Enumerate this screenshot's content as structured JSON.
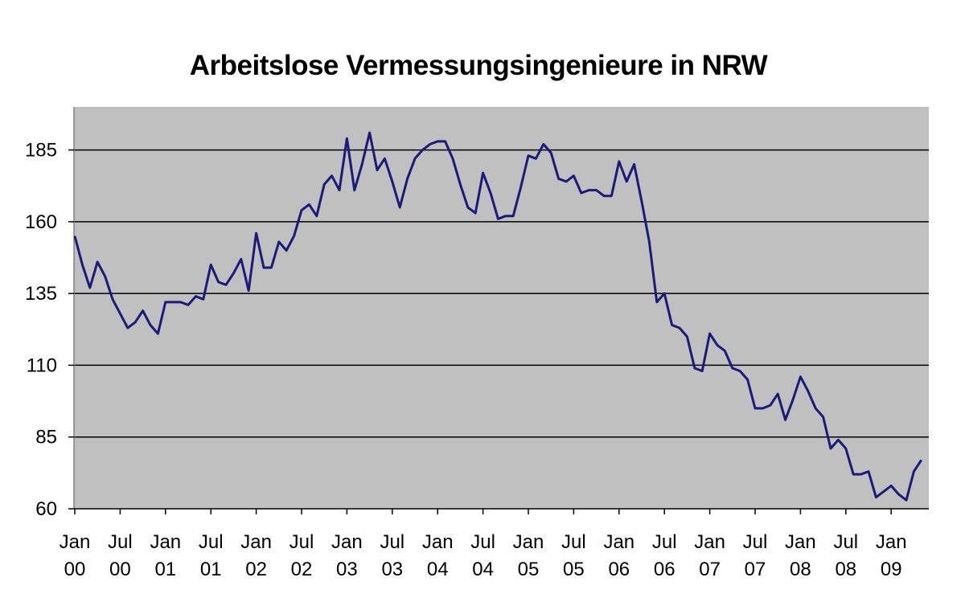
{
  "chart_data": {
    "type": "line",
    "title": "Arbeitslose Vermessungsingenieure in NRW",
    "xlabel": "",
    "ylabel": "",
    "ylim": [
      60,
      200
    ],
    "yticks": [
      60,
      85,
      110,
      135,
      160,
      185
    ],
    "grid": "horizontal",
    "colors": {
      "line": "#1a1a7a",
      "plot_background": "#c0c0c0",
      "grid": "#000000"
    },
    "xtick_labels": [
      {
        "month": "Jan",
        "year": "00"
      },
      {
        "month": "Jul",
        "year": "00"
      },
      {
        "month": "Jan",
        "year": "01"
      },
      {
        "month": "Jul",
        "year": "01"
      },
      {
        "month": "Jan",
        "year": "02"
      },
      {
        "month": "Jul",
        "year": "02"
      },
      {
        "month": "Jan",
        "year": "03"
      },
      {
        "month": "Jul",
        "year": "03"
      },
      {
        "month": "Jan",
        "year": "04"
      },
      {
        "month": "Jul",
        "year": "04"
      },
      {
        "month": "Jan",
        "year": "05"
      },
      {
        "month": "Jul",
        "year": "05"
      },
      {
        "month": "Jan",
        "year": "06"
      },
      {
        "month": "Jul",
        "year": "06"
      },
      {
        "month": "Jan",
        "year": "07"
      },
      {
        "month": "Jul",
        "year": "07"
      },
      {
        "month": "Jan",
        "year": "08"
      },
      {
        "month": "Jul",
        "year": "08"
      },
      {
        "month": "Jan",
        "year": "09"
      }
    ],
    "series": [
      {
        "x": [
          "2000-01",
          "2000-02",
          "2000-03",
          "2000-04",
          "2000-05",
          "2000-06",
          "2000-07",
          "2000-08",
          "2000-09",
          "2000-10",
          "2000-11",
          "2000-12",
          "2001-01",
          "2001-02",
          "2001-03",
          "2001-04",
          "2001-05",
          "2001-06",
          "2001-07",
          "2001-08",
          "2001-09",
          "2001-10",
          "2001-11",
          "2001-12",
          "2002-01",
          "2002-02",
          "2002-03",
          "2002-04",
          "2002-05",
          "2002-06",
          "2002-07",
          "2002-08",
          "2002-09",
          "2002-10",
          "2002-11",
          "2002-12",
          "2003-01",
          "2003-02",
          "2003-03",
          "2003-04",
          "2003-05",
          "2003-06",
          "2003-07",
          "2003-08",
          "2003-09",
          "2003-10",
          "2003-11",
          "2003-12",
          "2004-01",
          "2004-02",
          "2004-03",
          "2004-04",
          "2004-05",
          "2004-06",
          "2004-07",
          "2004-08",
          "2004-09",
          "2004-10",
          "2004-11",
          "2004-12",
          "2005-01",
          "2005-02",
          "2005-03",
          "2005-04",
          "2005-05",
          "2005-06",
          "2005-07",
          "2005-08",
          "2005-09",
          "2005-10",
          "2005-11",
          "2005-12",
          "2006-01",
          "2006-02",
          "2006-03",
          "2006-04",
          "2006-05",
          "2006-06",
          "2006-07",
          "2006-08",
          "2006-09",
          "2006-10",
          "2006-11",
          "2006-12",
          "2007-01",
          "2007-02",
          "2007-03",
          "2007-04",
          "2007-05",
          "2007-06",
          "2007-07",
          "2007-08",
          "2007-09",
          "2007-10",
          "2007-11",
          "2007-12",
          "2008-01",
          "2008-02",
          "2008-03",
          "2008-04",
          "2008-05",
          "2008-06",
          "2008-07",
          "2008-08",
          "2008-09",
          "2008-10",
          "2008-11",
          "2008-12",
          "2009-01",
          "2009-02",
          "2009-03",
          "2009-04",
          "2009-05"
        ],
        "values": [
          155,
          145,
          137,
          146,
          141,
          133,
          128,
          123,
          125,
          129,
          124,
          121,
          132,
          132,
          132,
          131,
          134,
          133,
          145,
          139,
          138,
          142,
          147,
          136,
          156,
          144,
          144,
          153,
          150,
          155,
          164,
          166,
          162,
          173,
          176,
          171,
          189,
          171,
          180,
          191,
          178,
          182,
          174,
          165,
          175,
          182,
          185,
          187,
          188,
          188,
          182,
          173,
          165,
          163,
          177,
          170,
          161,
          162,
          162,
          172,
          183,
          182,
          187,
          184,
          175,
          174,
          176,
          170,
          171,
          171,
          169,
          169,
          181,
          174,
          180,
          167,
          153,
          132,
          135,
          124,
          123,
          120,
          109,
          108,
          121,
          117,
          115,
          109,
          108,
          105,
          95,
          95,
          96,
          100,
          91,
          98,
          106,
          101,
          95,
          92,
          81,
          84,
          81,
          72,
          72,
          73,
          64,
          66,
          68,
          65,
          63,
          73,
          77
        ]
      }
    ]
  }
}
